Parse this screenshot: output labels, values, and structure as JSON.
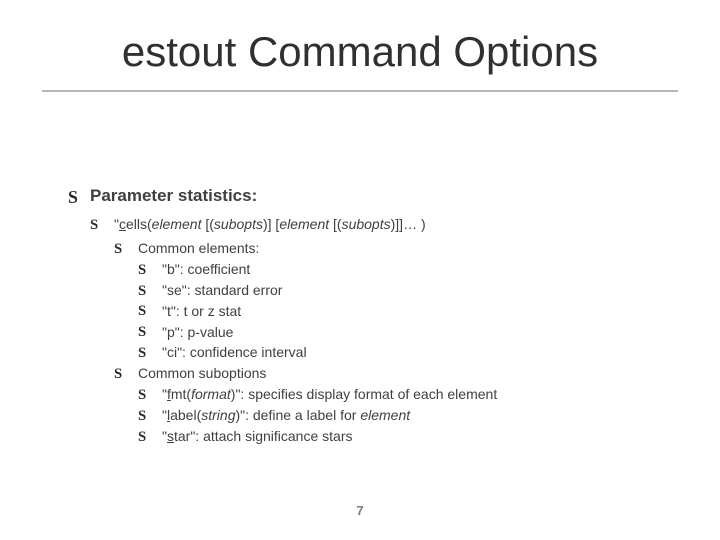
{
  "colors": {
    "background": "#ffffff",
    "title": "#303030",
    "underline": "#b6b6b6",
    "body": "#404040",
    "bullet": "#2a2a2a",
    "pagenum": "#7a7a7a"
  },
  "typography": {
    "title_fontsize": 42,
    "l0_fontsize": 17,
    "body_fontsize": 14,
    "font_family": "Arial"
  },
  "title": "estout Command Options",
  "bullet_glyph": "S",
  "page_number": "7",
  "content": {
    "parameter_stats": "Parameter statistics:",
    "cells_prefix": "\"",
    "cells_u": "c",
    "cells_mid1": "ells(",
    "cells_it1": "element",
    "cells_mid2": " [(",
    "cells_it2": "subopts",
    "cells_mid3": ")] [",
    "cells_it3": "element",
    "cells_mid4": " [(",
    "cells_it4": "subopts",
    "cells_mid5": ")]]… )",
    "common_elements": "Common elements:",
    "b": "\"b\": coefficient",
    "se": "\"se\": standard error",
    "t": "\"t\": t or z stat",
    "p": "\"p\": p-value",
    "ci": "\"ci\": confidence interval",
    "common_subopts": "Common suboptions",
    "fmt_prefix": "\"",
    "fmt_u": "f",
    "fmt_mid1": "mt(",
    "fmt_it": "format",
    "fmt_suffix": ")\": specifies display format of each element",
    "label_prefix": "\"",
    "label_u": "l",
    "label_mid1": "abel(",
    "label_it": "string",
    "label_mid2": ")\": define a label for ",
    "label_it2": "element",
    "star_prefix": "\"",
    "star_u": "s",
    "star_suffix": "tar\": attach significance stars"
  }
}
